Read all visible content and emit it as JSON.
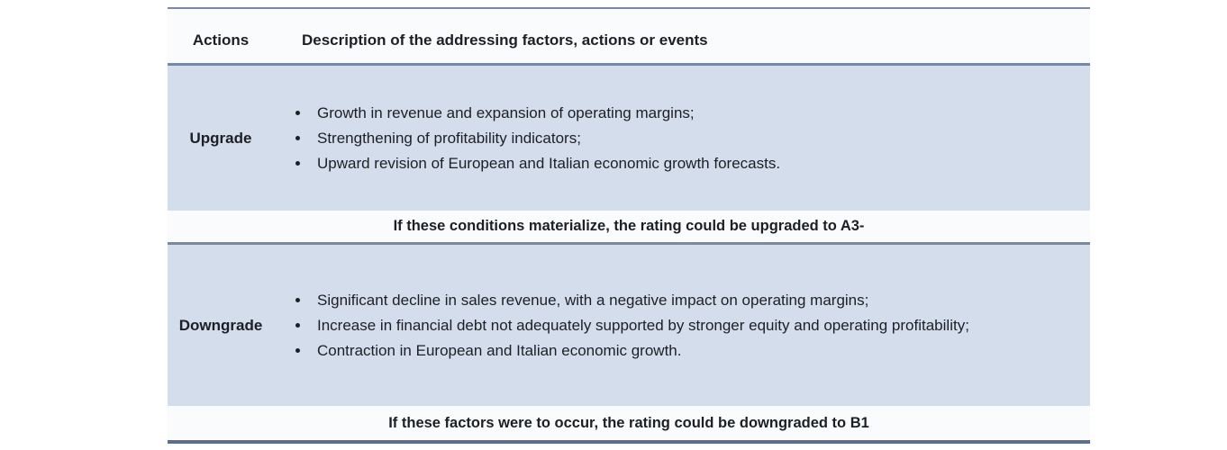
{
  "colors": {
    "row_bg": "#d3ddec",
    "band_bg": "#fafbfd",
    "rule": "#7989a3",
    "bottom_rule": "#5d6f8e",
    "text": "#1c2026"
  },
  "table": {
    "header": {
      "actions": "Actions",
      "description": "Description of the addressing factors, actions or events"
    },
    "rows": [
      {
        "action": "Upgrade",
        "bullets": [
          "Growth in revenue and expansion of operating margins;",
          "Strengthening of profitability indicators;",
          "Upward revision of European and Italian economic growth forecasts."
        ],
        "note": "If these conditions materialize, the rating could be upgraded to A3-"
      },
      {
        "action": "Downgrade",
        "bullets": [
          "Significant decline in sales revenue, with a negative impact on operating margins;",
          "Increase in financial debt not adequately supported by stronger equity and operating profitability;",
          "Contraction in European and Italian economic growth."
        ],
        "note": "If these factors were to occur, the rating could be downgraded to B1"
      }
    ]
  }
}
